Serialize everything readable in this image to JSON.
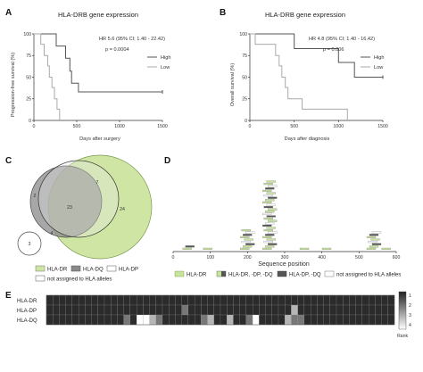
{
  "panels": {
    "A": {
      "letter": "A",
      "title": "HLA-DRB gene expression",
      "hr": "HR 5.6 (95% CI; 1.40 - 22.42)",
      "p": "p = 0.0004",
      "ylabel": "Progression-free survival (%)",
      "xlabel": "Days after surgery",
      "legend": [
        "High",
        "Low"
      ]
    },
    "B": {
      "letter": "B",
      "title": "HLA-DRB gene expression",
      "hr": "HR 4.8 (95% CI; 1.40 - 16.42)",
      "p": "p = 0.006",
      "ylabel": "Overall survival (%)",
      "xlabel": "Days after diagnosis",
      "legend": [
        "High",
        "Low"
      ]
    },
    "C": {
      "letter": "C",
      "counts": {
        "dr_only": "24",
        "dr_dq": "23",
        "dq_only": "2",
        "dr_dp": "7",
        "dp_only": "3",
        "center": "4"
      }
    },
    "D": {
      "letter": "D",
      "xlabel": "Sequence position"
    },
    "E": {
      "letter": "E",
      "rows": [
        "HLA-DR",
        "HLA-DP",
        "HLA-DQ"
      ],
      "rank_label": "Rank",
      "rank_ticks": [
        "1",
        "2",
        "3",
        "4"
      ]
    }
  },
  "legend_cd": {
    "venn": [
      "HLA-DR",
      "HLA-DQ",
      "HLA-DP",
      "not assigned to HLA alleles"
    ],
    "map": [
      "HLA-DR",
      "HLA-DR, -DP, -DQ",
      "HLA-DP, -DQ",
      "not assigned to HLA alleles"
    ]
  },
  "colors": {
    "green": "#c8e39a",
    "darkgray": "#555555",
    "midgray": "#888888",
    "lightgray": "#bbbbbb"
  },
  "chart_data": [
    {
      "type": "line",
      "panel": "A",
      "title": "HLA-DRB gene expression",
      "xlabel": "Days after surgery",
      "ylabel": "Progression-free survival (%)",
      "xlim": [
        0,
        1500
      ],
      "ylim": [
        0,
        100
      ],
      "xticks": [
        0,
        500,
        1000,
        1500
      ],
      "yticks": [
        0,
        25,
        50,
        75,
        100
      ],
      "series": [
        {
          "name": "High",
          "steps": [
            [
              0,
              100
            ],
            [
              260,
              100
            ],
            [
              260,
              86
            ],
            [
              370,
              86
            ],
            [
              370,
              72
            ],
            [
              420,
              72
            ],
            [
              420,
              57
            ],
            [
              440,
              57
            ],
            [
              440,
              43
            ],
            [
              520,
              43
            ],
            [
              520,
              33
            ],
            [
              1500,
              33
            ]
          ]
        },
        {
          "name": "Low",
          "steps": [
            [
              0,
              100
            ],
            [
              80,
              100
            ],
            [
              80,
              88
            ],
            [
              120,
              88
            ],
            [
              120,
              75
            ],
            [
              160,
              75
            ],
            [
              160,
              63
            ],
            [
              180,
              63
            ],
            [
              180,
              50
            ],
            [
              210,
              50
            ],
            [
              210,
              38
            ],
            [
              240,
              38
            ],
            [
              240,
              25
            ],
            [
              270,
              25
            ],
            [
              270,
              13
            ],
            [
              300,
              13
            ],
            [
              300,
              0
            ]
          ]
        }
      ]
    },
    {
      "type": "line",
      "panel": "B",
      "title": "HLA-DRB gene expression",
      "xlabel": "Days after diagnosis",
      "ylabel": "Overall survival (%)",
      "xlim": [
        0,
        1500
      ],
      "ylim": [
        0,
        100
      ],
      "xticks": [
        0,
        500,
        1000,
        1500
      ],
      "yticks": [
        0,
        25,
        50,
        75,
        100
      ],
      "series": [
        {
          "name": "High",
          "steps": [
            [
              0,
              100
            ],
            [
              500,
              100
            ],
            [
              500,
              83
            ],
            [
              1000,
              83
            ],
            [
              1000,
              67
            ],
            [
              1180,
              67
            ],
            [
              1180,
              50
            ],
            [
              1500,
              50
            ]
          ]
        },
        {
          "name": "Low",
          "steps": [
            [
              0,
              100
            ],
            [
              60,
              100
            ],
            [
              60,
              88
            ],
            [
              290,
              88
            ],
            [
              290,
              75
            ],
            [
              330,
              75
            ],
            [
              330,
              63
            ],
            [
              360,
              63
            ],
            [
              360,
              50
            ],
            [
              400,
              50
            ],
            [
              400,
              38
            ],
            [
              430,
              38
            ],
            [
              430,
              25
            ],
            [
              590,
              25
            ],
            [
              590,
              13
            ],
            [
              1100,
              13
            ],
            [
              1100,
              0
            ]
          ]
        }
      ]
    },
    {
      "type": "bar",
      "panel": "D",
      "xlabel": "Sequence position",
      "xlim": [
        0,
        600
      ],
      "xticks": [
        0,
        100,
        200,
        300,
        400,
        500,
        600
      ],
      "clusters": [
        {
          "pos": 45,
          "count": 2
        },
        {
          "pos": 100,
          "count": 1
        },
        {
          "pos": 200,
          "count": 9
        },
        {
          "pos": 260,
          "count": 30
        },
        {
          "pos": 360,
          "count": 1
        },
        {
          "pos": 420,
          "count": 1
        },
        {
          "pos": 540,
          "count": 8
        },
        {
          "pos": 580,
          "count": 1
        }
      ]
    },
    {
      "type": "heatmap",
      "panel": "E",
      "rows": [
        "HLA-DR",
        "HLA-DP",
        "HLA-DQ"
      ],
      "n_columns": 54,
      "scale": [
        1,
        4
      ],
      "ranks": [
        [
          1,
          1,
          1,
          1,
          1,
          1,
          1,
          1,
          1,
          1,
          1,
          1,
          1,
          1,
          1,
          1,
          1,
          1,
          1,
          1,
          1,
          1,
          1,
          1,
          1,
          1,
          1,
          1,
          1,
          1,
          1,
          1,
          1,
          1,
          1,
          1,
          1,
          1,
          1,
          1,
          1,
          1,
          1,
          1,
          1,
          1,
          1,
          1,
          1,
          1,
          1,
          1,
          1,
          1
        ],
        [
          1,
          1,
          1,
          1,
          1,
          1,
          1,
          1,
          1,
          1,
          1,
          1,
          1,
          1,
          1,
          1,
          1,
          1,
          1,
          1,
          1,
          2,
          1,
          1,
          1,
          1,
          1,
          1,
          1,
          1,
          1,
          1,
          1,
          1,
          1,
          1,
          1,
          1,
          3,
          1,
          1,
          1,
          1,
          1,
          1,
          1,
          1,
          1,
          1,
          1,
          1,
          1,
          1,
          1
        ],
        [
          1,
          1,
          1,
          1,
          1,
          1,
          1,
          1,
          1,
          1,
          1,
          1,
          2,
          1,
          4,
          4,
          3,
          2,
          1,
          1,
          1,
          1,
          1,
          1,
          2,
          3,
          1,
          1,
          3,
          1,
          1,
          2,
          4,
          1,
          1,
          1,
          1,
          3,
          2,
          2,
          1,
          1,
          1,
          1,
          1,
          1,
          1,
          1,
          1,
          1,
          1,
          1,
          1,
          1
        ]
      ]
    }
  ]
}
